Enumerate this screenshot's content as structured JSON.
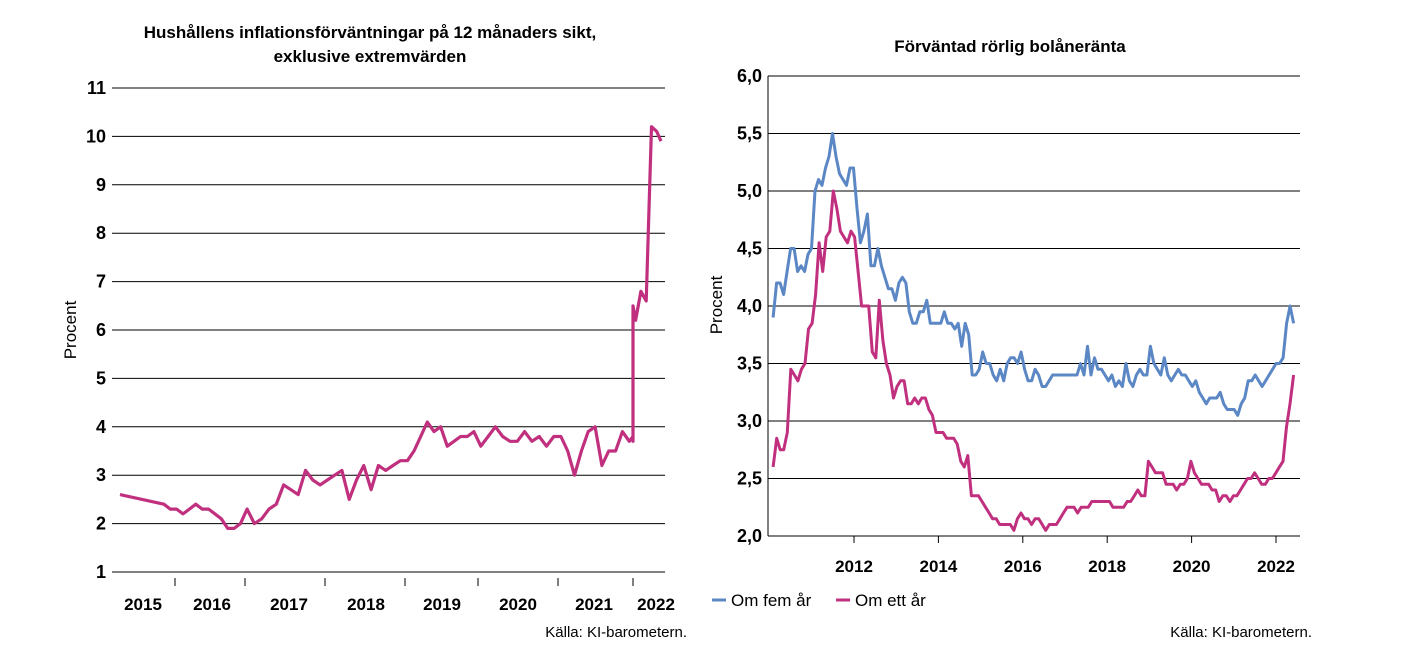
{
  "chart_data": [
    {
      "type": "line",
      "title": "Hushållens inflationsförväntningar på 12 månaders sikt,",
      "subtitle": "exklusive extremvärden",
      "ylabel": "Procent",
      "xlabel": "",
      "ylim": [
        1,
        11
      ],
      "yticks": [
        "1",
        "2",
        "3",
        "4",
        "5",
        "6",
        "7",
        "8",
        "9",
        "10",
        "11"
      ],
      "xticks": [
        "2015",
        "2016",
        "2017",
        "2018",
        "2019",
        "2020",
        "2021",
        "2022"
      ],
      "grid": true,
      "source": "Källa: KI-barometern.",
      "colors": {
        "series": "#c0307f"
      },
      "series": [
        {
          "values": [
            2.6,
            2.4,
            2.3,
            2.3,
            2.2,
            2.3,
            2.4,
            2.3,
            2.3,
            2.2,
            2.1,
            1.9,
            1.9,
            2.0,
            2.3,
            2.0,
            2.1,
            2.3,
            2.4,
            2.8,
            2.7,
            2.6,
            3.1,
            2.9,
            2.8,
            2.9,
            3.0,
            3.1,
            2.5,
            2.9,
            3.2,
            2.7,
            3.2,
            3.1,
            3.2,
            3.3,
            3.3,
            3.5,
            3.8,
            4.1,
            3.9,
            4.0,
            3.6,
            3.7,
            3.8,
            3.8,
            3.9,
            3.6,
            3.8,
            4.0,
            3.8,
            3.7,
            3.7,
            3.9,
            3.7,
            3.8,
            3.6,
            3.8,
            3.8,
            3.5,
            3.0,
            3.5,
            3.9,
            4.0,
            3.2,
            3.5,
            3.5,
            3.9,
            3.7,
            3.8,
            3.7,
            3.8,
            3.7,
            4.7,
            4.3,
            4.9,
            4.4,
            5.2,
            5.9,
            6.5,
            6.2,
            6.8,
            6.6,
            10.2,
            10.1,
            9.9
          ],
          "x_start": "2014-10",
          "x_end": "2022-07"
        }
      ]
    },
    {
      "type": "line",
      "title": "Förväntad rörlig bolåneränta",
      "ylabel": "Procent",
      "xlabel": "",
      "ylim": [
        2.0,
        6.0
      ],
      "yticks": [
        "2,0",
        "2,5",
        "3,0",
        "3,5",
        "4,0",
        "4,5",
        "5,0",
        "5,5",
        "6,0"
      ],
      "xticks": [
        "2012",
        "2014",
        "2016",
        "2018",
        "2020",
        "2022"
      ],
      "grid": true,
      "legend": "bottom-left",
      "source": "Källa: KI-barometern.",
      "x_start": "2010-02",
      "x_end": "2022-06",
      "series": [
        {
          "name": "Om fem år",
          "color": "#5b87c5",
          "values": [
            3.9,
            4.2,
            4.2,
            4.1,
            4.3,
            4.5,
            4.5,
            4.3,
            4.35,
            4.3,
            4.45,
            4.5,
            5.0,
            5.1,
            5.05,
            5.2,
            5.3,
            5.5,
            5.3,
            5.15,
            5.1,
            5.05,
            5.2,
            5.2,
            4.85,
            4.55,
            4.65,
            4.8,
            4.35,
            4.35,
            4.5,
            4.35,
            4.25,
            4.15,
            4.15,
            4.05,
            4.2,
            4.25,
            4.2,
            3.95,
            3.85,
            3.85,
            3.95,
            3.95,
            4.05,
            3.85,
            3.85,
            3.85,
            3.85,
            3.95,
            3.85,
            3.85,
            3.8,
            3.85,
            3.65,
            3.85,
            3.75,
            3.4,
            3.4,
            3.45,
            3.6,
            3.5,
            3.5,
            3.4,
            3.35,
            3.45,
            3.35,
            3.5,
            3.55,
            3.55,
            3.5,
            3.6,
            3.45,
            3.35,
            3.35,
            3.45,
            3.4,
            3.3,
            3.3,
            3.35,
            3.4,
            3.4,
            3.4,
            3.4,
            3.4,
            3.4,
            3.4,
            3.4,
            3.5,
            3.4,
            3.65,
            3.4,
            3.55,
            3.45,
            3.45,
            3.4,
            3.35,
            3.4,
            3.3,
            3.35,
            3.3,
            3.5,
            3.35,
            3.3,
            3.4,
            3.45,
            3.4,
            3.4,
            3.65,
            3.5,
            3.45,
            3.4,
            3.55,
            3.4,
            3.35,
            3.4,
            3.45,
            3.4,
            3.4,
            3.35,
            3.3,
            3.35,
            3.25,
            3.2,
            3.15,
            3.2,
            3.2,
            3.2,
            3.25,
            3.15,
            3.1,
            3.1,
            3.1,
            3.05,
            3.15,
            3.2,
            3.35,
            3.35,
            3.4,
            3.35,
            3.3,
            3.35,
            3.4,
            3.45,
            3.5,
            3.5,
            3.55,
            3.85,
            4.0,
            3.85
          ]
        },
        {
          "name": "Om ett år",
          "color": "#c0307f",
          "values": [
            2.6,
            2.85,
            2.75,
            2.75,
            2.9,
            3.45,
            3.4,
            3.35,
            3.45,
            3.5,
            3.8,
            3.85,
            4.1,
            4.55,
            4.3,
            4.6,
            4.65,
            5.0,
            4.85,
            4.65,
            4.6,
            4.55,
            4.65,
            4.6,
            4.3,
            4.0,
            4.0,
            4.0,
            3.6,
            3.55,
            4.05,
            3.7,
            3.5,
            3.4,
            3.2,
            3.3,
            3.35,
            3.35,
            3.15,
            3.15,
            3.2,
            3.15,
            3.2,
            3.2,
            3.1,
            3.05,
            2.9,
            2.9,
            2.9,
            2.85,
            2.85,
            2.85,
            2.8,
            2.65,
            2.6,
            2.7,
            2.35,
            2.35,
            2.35,
            2.3,
            2.25,
            2.2,
            2.15,
            2.15,
            2.1,
            2.1,
            2.1,
            2.1,
            2.05,
            2.15,
            2.2,
            2.15,
            2.15,
            2.1,
            2.15,
            2.15,
            2.1,
            2.05,
            2.1,
            2.1,
            2.1,
            2.15,
            2.2,
            2.25,
            2.25,
            2.25,
            2.2,
            2.25,
            2.25,
            2.25,
            2.3,
            2.3,
            2.3,
            2.3,
            2.3,
            2.3,
            2.25,
            2.25,
            2.25,
            2.25,
            2.3,
            2.3,
            2.35,
            2.4,
            2.35,
            2.35,
            2.65,
            2.6,
            2.55,
            2.55,
            2.55,
            2.45,
            2.45,
            2.45,
            2.4,
            2.45,
            2.45,
            2.5,
            2.65,
            2.55,
            2.5,
            2.45,
            2.45,
            2.45,
            2.4,
            2.4,
            2.3,
            2.35,
            2.35,
            2.3,
            2.35,
            2.35,
            2.4,
            2.45,
            2.5,
            2.5,
            2.55,
            2.5,
            2.45,
            2.45,
            2.5,
            2.5,
            2.55,
            2.6,
            2.65,
            2.95,
            3.15,
            3.4
          ]
        }
      ]
    }
  ]
}
